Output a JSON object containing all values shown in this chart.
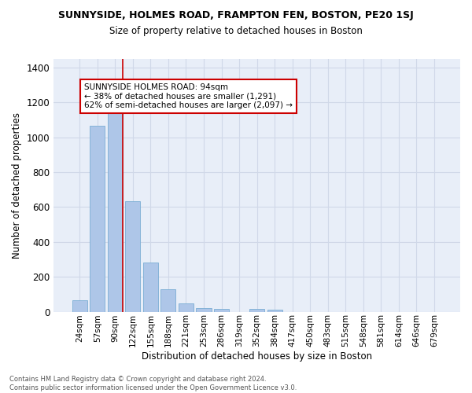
{
  "title": "SUNNYSIDE, HOLMES ROAD, FRAMPTON FEN, BOSTON, PE20 1SJ",
  "subtitle": "Size of property relative to detached houses in Boston",
  "xlabel": "Distribution of detached houses by size in Boston",
  "ylabel": "Number of detached properties",
  "footer_line1": "Contains HM Land Registry data © Crown copyright and database right 2024.",
  "footer_line2": "Contains public sector information licensed under the Open Government Licence v3.0.",
  "categories": [
    "24sqm",
    "57sqm",
    "90sqm",
    "122sqm",
    "155sqm",
    "188sqm",
    "221sqm",
    "253sqm",
    "286sqm",
    "319sqm",
    "352sqm",
    "384sqm",
    "417sqm",
    "450sqm",
    "483sqm",
    "515sqm",
    "548sqm",
    "581sqm",
    "614sqm",
    "646sqm",
    "679sqm"
  ],
  "values": [
    65,
    1065,
    1155,
    635,
    280,
    130,
    48,
    20,
    18,
    0,
    18,
    10,
    0,
    0,
    0,
    0,
    0,
    0,
    0,
    0,
    0
  ],
  "bar_color": "#aec6e8",
  "bar_edge_color": "#7aadd4",
  "highlight_bar_index": 2,
  "highlight_line_color": "#cc0000",
  "ylim": [
    0,
    1450
  ],
  "yticks": [
    0,
    200,
    400,
    600,
    800,
    1000,
    1200,
    1400
  ],
  "annotation_title": "SUNNYSIDE HOLMES ROAD: 94sqm",
  "annotation_line2": "← 38% of detached houses are smaller (1,291)",
  "annotation_line3": "62% of semi-detached houses are larger (2,097) →",
  "annotation_box_color": "#ffffff",
  "annotation_box_edge": "#cc0000",
  "grid_color": "#d0d8e8",
  "background_color": "#e8eef8",
  "title_fontsize": 9,
  "subtitle_fontsize": 9
}
